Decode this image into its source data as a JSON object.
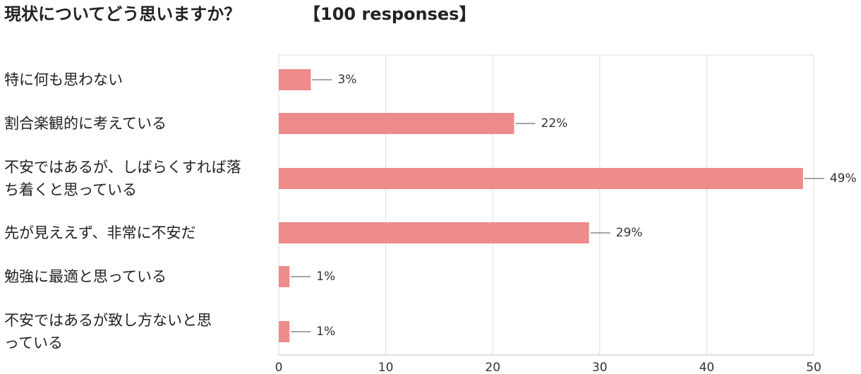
{
  "chart_data": {
    "type": "bar",
    "orientation": "horizontal",
    "title": "現状についてどう思いますか？",
    "subtitle": "【100 responses】",
    "categories": [
      "特に何も思わない",
      "割合楽観的に考えている",
      "不安ではあるが、しばらくすれば落ち着くと思っている",
      "先が見ええず、非常に不安だ",
      "勉強に最適と思っている",
      "不安ではあるが致し方ないと思っている"
    ],
    "values": [
      3,
      22,
      49,
      29,
      1,
      1
    ],
    "value_labels": [
      "3%",
      "22%",
      "49%",
      "29%",
      "1%",
      "1%"
    ],
    "color": "#ee8b8b",
    "xlim": [
      0,
      50
    ],
    "xticks": [
      0,
      10,
      20,
      30,
      40,
      50
    ],
    "grid": true
  }
}
